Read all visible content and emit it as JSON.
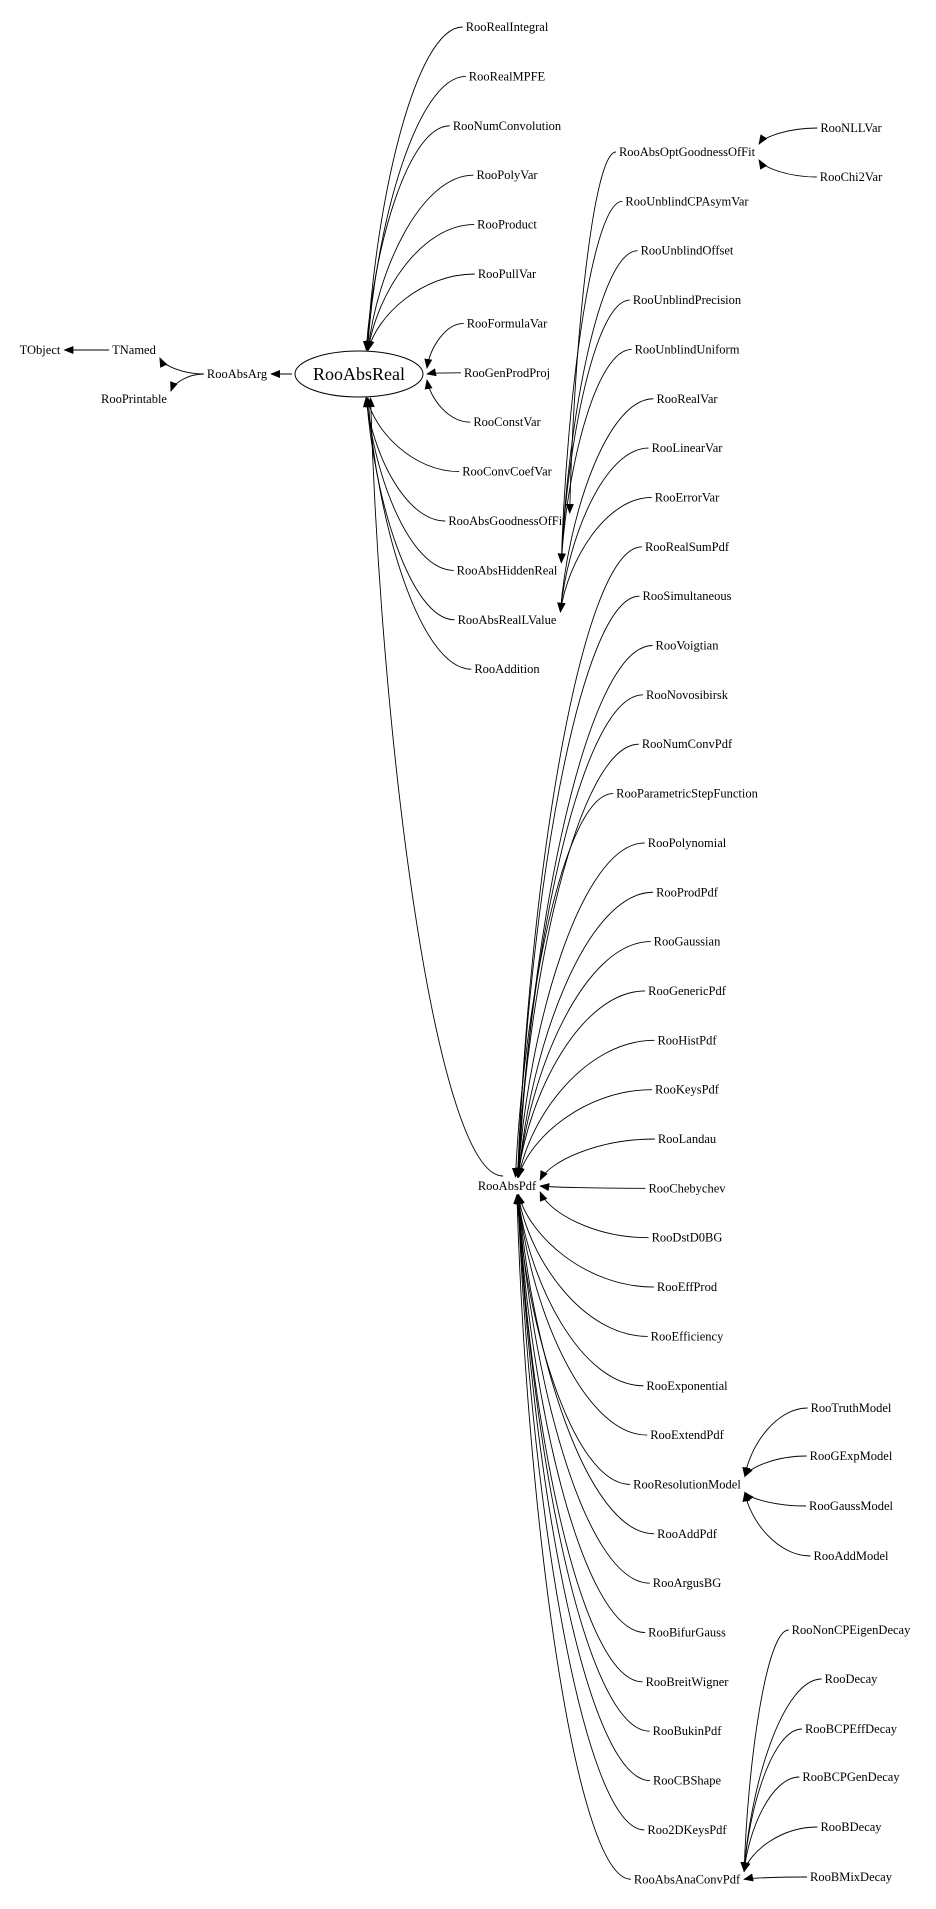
{
  "colors": {
    "background": "#ffffff",
    "ink": "#000000"
  },
  "nodes": [
    "TObject",
    "TNamed",
    "RooPrintable",
    "RooAbsArg",
    "RooAbsReal",
    "RooAbsPdf",
    "RooRealIntegral",
    "RooRealMPFE",
    "RooNumConvolution",
    "RooPolyVar",
    "RooProduct",
    "RooPullVar",
    "RooFormulaVar",
    "RooGenProdProj",
    "RooConstVar",
    "RooConvCoefVar",
    "RooAbsGoodnessOfFit",
    "RooAbsHiddenReal",
    "RooAbsRealLValue",
    "RooAddition",
    "RooAbsOptGoodnessOfFit",
    "RooUnblindCPAsymVar",
    "RooUnblindOffset",
    "RooUnblindPrecision",
    "RooUnblindUniform",
    "RooRealVar",
    "RooLinearVar",
    "RooErrorVar",
    "RooRealSumPdf",
    "RooSimultaneous",
    "RooVoigtian",
    "RooNovosibirsk",
    "RooNumConvPdf",
    "RooParametricStepFunction",
    "RooPolynomial",
    "RooProdPdf",
    "RooGaussian",
    "RooGenericPdf",
    "RooHistPdf",
    "RooKeysPdf",
    "RooLandau",
    "RooChebychev",
    "RooDstD0BG",
    "RooEffProd",
    "RooEfficiency",
    "RooExponential",
    "RooExtendPdf",
    "RooResolutionModel",
    "RooAddPdf",
    "RooArgusBG",
    "RooBifurGauss",
    "RooBreitWigner",
    "RooBukinPdf",
    "RooCBShape",
    "Roo2DKeysPdf",
    "RooAbsAnaConvPdf",
    "RooNLLVar",
    "RooChi2Var",
    "RooTruthModel",
    "RooGExpModel",
    "RooGaussModel",
    "RooAddModel",
    "RooNonCPEigenDecay",
    "RooDecay",
    "RooBCPEffDecay",
    "RooBCPGenDecay",
    "RooBDecay",
    "RooBMixDecay"
  ],
  "edges": [
    [
      "TNamed",
      "TObject"
    ],
    [
      "RooAbsArg",
      "TNamed"
    ],
    [
      "RooAbsArg",
      "RooPrintable"
    ],
    [
      "RooAbsReal",
      "RooAbsArg"
    ],
    [
      "RooRealIntegral",
      "RooAbsReal"
    ],
    [
      "RooRealMPFE",
      "RooAbsReal"
    ],
    [
      "RooNumConvolution",
      "RooAbsReal"
    ],
    [
      "RooPolyVar",
      "RooAbsReal"
    ],
    [
      "RooProduct",
      "RooAbsReal"
    ],
    [
      "RooPullVar",
      "RooAbsReal"
    ],
    [
      "RooFormulaVar",
      "RooAbsReal"
    ],
    [
      "RooGenProdProj",
      "RooAbsReal"
    ],
    [
      "RooConstVar",
      "RooAbsReal"
    ],
    [
      "RooConvCoefVar",
      "RooAbsReal"
    ],
    [
      "RooAbsGoodnessOfFit",
      "RooAbsReal"
    ],
    [
      "RooAbsHiddenReal",
      "RooAbsReal"
    ],
    [
      "RooAbsRealLValue",
      "RooAbsReal"
    ],
    [
      "RooAddition",
      "RooAbsReal"
    ],
    [
      "RooAbsPdf",
      "RooAbsReal"
    ],
    [
      "RooAbsOptGoodnessOfFit",
      "RooAbsGoodnessOfFit"
    ],
    [
      "RooUnblindCPAsymVar",
      "RooAbsHiddenReal"
    ],
    [
      "RooUnblindOffset",
      "RooAbsHiddenReal"
    ],
    [
      "RooUnblindPrecision",
      "RooAbsHiddenReal"
    ],
    [
      "RooUnblindUniform",
      "RooAbsHiddenReal"
    ],
    [
      "RooRealVar",
      "RooAbsRealLValue"
    ],
    [
      "RooLinearVar",
      "RooAbsRealLValue"
    ],
    [
      "RooErrorVar",
      "RooAbsRealLValue"
    ],
    [
      "RooRealSumPdf",
      "RooAbsPdf"
    ],
    [
      "RooSimultaneous",
      "RooAbsPdf"
    ],
    [
      "RooVoigtian",
      "RooAbsPdf"
    ],
    [
      "RooNovosibirsk",
      "RooAbsPdf"
    ],
    [
      "RooNumConvPdf",
      "RooAbsPdf"
    ],
    [
      "RooParametricStepFunction",
      "RooAbsPdf"
    ],
    [
      "RooPolynomial",
      "RooAbsPdf"
    ],
    [
      "RooProdPdf",
      "RooAbsPdf"
    ],
    [
      "RooGaussian",
      "RooAbsPdf"
    ],
    [
      "RooGenericPdf",
      "RooAbsPdf"
    ],
    [
      "RooHistPdf",
      "RooAbsPdf"
    ],
    [
      "RooKeysPdf",
      "RooAbsPdf"
    ],
    [
      "RooLandau",
      "RooAbsPdf"
    ],
    [
      "RooChebychev",
      "RooAbsPdf"
    ],
    [
      "RooDstD0BG",
      "RooAbsPdf"
    ],
    [
      "RooEffProd",
      "RooAbsPdf"
    ],
    [
      "RooEfficiency",
      "RooAbsPdf"
    ],
    [
      "RooExponential",
      "RooAbsPdf"
    ],
    [
      "RooExtendPdf",
      "RooAbsPdf"
    ],
    [
      "RooResolutionModel",
      "RooAbsPdf"
    ],
    [
      "RooAddPdf",
      "RooAbsPdf"
    ],
    [
      "RooArgusBG",
      "RooAbsPdf"
    ],
    [
      "RooBifurGauss",
      "RooAbsPdf"
    ],
    [
      "RooBreitWigner",
      "RooAbsPdf"
    ],
    [
      "RooBukinPdf",
      "RooAbsPdf"
    ],
    [
      "RooCBShape",
      "RooAbsPdf"
    ],
    [
      "Roo2DKeysPdf",
      "RooAbsPdf"
    ],
    [
      "RooAbsAnaConvPdf",
      "RooAbsPdf"
    ],
    [
      "RooNLLVar",
      "RooAbsOptGoodnessOfFit"
    ],
    [
      "RooChi2Var",
      "RooAbsOptGoodnessOfFit"
    ],
    [
      "RooTruthModel",
      "RooResolutionModel"
    ],
    [
      "RooGExpModel",
      "RooResolutionModel"
    ],
    [
      "RooGaussModel",
      "RooResolutionModel"
    ],
    [
      "RooAddModel",
      "RooResolutionModel"
    ],
    [
      "RooNonCPEigenDecay",
      "RooAbsAnaConvPdf"
    ],
    [
      "RooDecay",
      "RooAbsAnaConvPdf"
    ],
    [
      "RooBCPEffDecay",
      "RooAbsAnaConvPdf"
    ],
    [
      "RooBCPGenDecay",
      "RooAbsAnaConvPdf"
    ],
    [
      "RooBDecay",
      "RooAbsAnaConvPdf"
    ],
    [
      "RooBMixDecay",
      "RooAbsAnaConvPdf"
    ]
  ],
  "highlighted_node": "RooAbsReal"
}
